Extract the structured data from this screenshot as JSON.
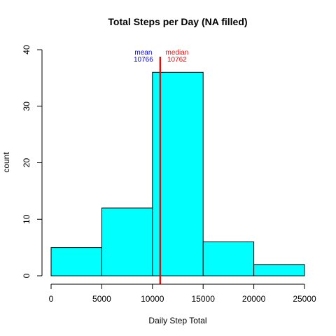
{
  "chart_data": {
    "type": "bar",
    "title": "Total Steps per Day (NA filled)",
    "xlabel": "Daily Step Total",
    "ylabel": "count",
    "bins": [
      {
        "from": 0,
        "to": 5000,
        "count": 5
      },
      {
        "from": 5000,
        "to": 10000,
        "count": 12
      },
      {
        "from": 10000,
        "to": 15000,
        "count": 36
      },
      {
        "from": 15000,
        "to": 20000,
        "count": 6
      },
      {
        "from": 20000,
        "to": 25000,
        "count": 2
      }
    ],
    "xlim": [
      0,
      25000
    ],
    "ylim": [
      0,
      40
    ],
    "x_ticks": [
      "0",
      "5000",
      "10000",
      "15000",
      "20000",
      "25000"
    ],
    "y_ticks": [
      "0",
      "10",
      "20",
      "30",
      "40"
    ],
    "grid": false,
    "bar_fill": "#00ffff",
    "bar_stroke": "#000000",
    "vline": {
      "x": 10766,
      "color": "#ff0000"
    },
    "annotations": [
      {
        "name": "mean",
        "label": "mean",
        "value": "10766",
        "color": "#0000ff"
      },
      {
        "name": "median",
        "label": "median",
        "value": "10762",
        "color": "#ff0000"
      }
    ]
  }
}
